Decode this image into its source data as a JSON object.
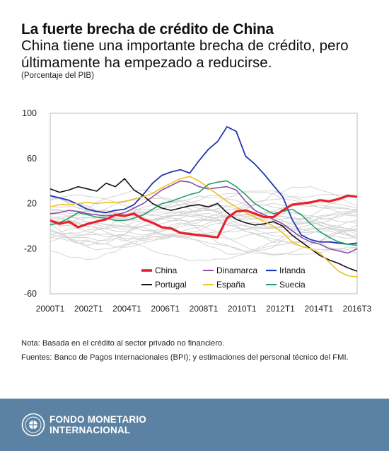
{
  "title": "La fuerte brecha de crédito de China",
  "subtitle": "China tiene una importante brecha de crédito, pero últimamente ha empezado a reducirse.",
  "unit_label": "(Porcentaje del PIB)",
  "notes": {
    "note": "Nota: Basada en el crédito al sector privado no financiero.",
    "sources": "Fuentes: Banco de Pagos Internacionales (BPI); y estimaciones del personal técnico del FMI."
  },
  "footer": {
    "org_line1": "FONDO MONETARIO",
    "org_line2": "INTERNACIONAL"
  },
  "chart_data": {
    "type": "line",
    "title": "",
    "xlabel": "",
    "ylabel": "",
    "x_tick_labels": [
      "2000T1",
      "2002T1",
      "2004T1",
      "2006T1",
      "2008T1",
      "2010T1",
      "2012T1",
      "2014T1",
      "2016T3"
    ],
    "x_range": [
      2000.0,
      2016.5
    ],
    "y_ticks": [
      100,
      60,
      20,
      -20,
      -60
    ],
    "y_tick_labels": [
      "100",
      "60",
      "20",
      "-20",
      "-60"
    ],
    "ylim": [
      -60,
      100
    ],
    "grid": false,
    "legend_position": "bottom-left",
    "background_series": {
      "color": "#d0d0d0",
      "note": "many unlabeled countries"
    },
    "series": [
      {
        "name": "China",
        "color": "#e8202a",
        "width": 3.2,
        "points": [
          [
            2000,
            5
          ],
          [
            2000.5,
            2
          ],
          [
            2001,
            4
          ],
          [
            2001.5,
            -1
          ],
          [
            2002,
            2
          ],
          [
            2002.5,
            4
          ],
          [
            2003,
            6
          ],
          [
            2003.5,
            10
          ],
          [
            2004,
            9
          ],
          [
            2004.5,
            11
          ],
          [
            2005,
            6
          ],
          [
            2005.5,
            3
          ],
          [
            2006,
            -1
          ],
          [
            2006.5,
            -2
          ],
          [
            2007,
            -6
          ],
          [
            2007.5,
            -7
          ],
          [
            2008,
            -8
          ],
          [
            2008.5,
            -9
          ],
          [
            2009,
            -10
          ],
          [
            2009.5,
            7
          ],
          [
            2010,
            13
          ],
          [
            2010.5,
            14
          ],
          [
            2011,
            11
          ],
          [
            2011.5,
            8
          ],
          [
            2012,
            8
          ],
          [
            2012.5,
            14
          ],
          [
            2013,
            19
          ],
          [
            2013.5,
            20
          ],
          [
            2014,
            21
          ],
          [
            2014.5,
            23
          ],
          [
            2015,
            22
          ],
          [
            2015.5,
            24
          ],
          [
            2016,
            27
          ],
          [
            2016.5,
            26
          ]
        ]
      },
      {
        "name": "Dinamarca",
        "color": "#8b4fa8",
        "width": 1.6,
        "points": [
          [
            2000,
            11
          ],
          [
            2000.5,
            12
          ],
          [
            2001,
            14
          ],
          [
            2001.5,
            13
          ],
          [
            2002,
            11
          ],
          [
            2002.5,
            10
          ],
          [
            2003,
            9
          ],
          [
            2003.5,
            10
          ],
          [
            2004,
            12
          ],
          [
            2004.5,
            16
          ],
          [
            2005,
            20
          ],
          [
            2005.5,
            26
          ],
          [
            2006,
            32
          ],
          [
            2006.5,
            36
          ],
          [
            2007,
            40
          ],
          [
            2007.5,
            39
          ],
          [
            2008,
            35
          ],
          [
            2008.5,
            33
          ],
          [
            2009,
            34
          ],
          [
            2009.5,
            35
          ],
          [
            2010,
            32
          ],
          [
            2010.5,
            22
          ],
          [
            2011,
            14
          ],
          [
            2011.5,
            10
          ],
          [
            2012,
            6
          ],
          [
            2012.5,
            2
          ],
          [
            2013,
            -4
          ],
          [
            2013.5,
            -10
          ],
          [
            2014,
            -14
          ],
          [
            2014.5,
            -16
          ],
          [
            2015,
            -20
          ],
          [
            2015.5,
            -22
          ],
          [
            2016,
            -24
          ],
          [
            2016.5,
            -20
          ]
        ]
      },
      {
        "name": "Irlanda",
        "color": "#1f35b0",
        "width": 1.8,
        "points": [
          [
            2000,
            27
          ],
          [
            2000.5,
            25
          ],
          [
            2001,
            23
          ],
          [
            2001.5,
            19
          ],
          [
            2002,
            15
          ],
          [
            2002.5,
            13
          ],
          [
            2003,
            12
          ],
          [
            2003.5,
            14
          ],
          [
            2004,
            15
          ],
          [
            2004.5,
            19
          ],
          [
            2005,
            28
          ],
          [
            2005.5,
            38
          ],
          [
            2006,
            45
          ],
          [
            2006.5,
            48
          ],
          [
            2007,
            50
          ],
          [
            2007.5,
            47
          ],
          [
            2008,
            58
          ],
          [
            2008.5,
            68
          ],
          [
            2009,
            75
          ],
          [
            2009.5,
            88
          ],
          [
            2010,
            84
          ],
          [
            2010.5,
            62
          ],
          [
            2011,
            55
          ],
          [
            2011.5,
            46
          ],
          [
            2012,
            36
          ],
          [
            2012.5,
            26
          ],
          [
            2013,
            6
          ],
          [
            2013.5,
            -8
          ],
          [
            2014,
            -12
          ],
          [
            2014.5,
            -14
          ],
          [
            2015,
            -14
          ],
          [
            2015.5,
            -15
          ],
          [
            2016,
            -16
          ],
          [
            2016.5,
            -15
          ]
        ]
      },
      {
        "name": "Portugal",
        "color": "#111111",
        "width": 1.6,
        "points": [
          [
            2000,
            33
          ],
          [
            2000.5,
            30
          ],
          [
            2001,
            32
          ],
          [
            2001.5,
            35
          ],
          [
            2002,
            33
          ],
          [
            2002.5,
            31
          ],
          [
            2003,
            38
          ],
          [
            2003.5,
            35
          ],
          [
            2004,
            42
          ],
          [
            2004.5,
            32
          ],
          [
            2005,
            27
          ],
          [
            2005.5,
            20
          ],
          [
            2006,
            16
          ],
          [
            2006.5,
            14
          ],
          [
            2007,
            16
          ],
          [
            2007.5,
            18
          ],
          [
            2008,
            19
          ],
          [
            2008.5,
            17
          ],
          [
            2009,
            20
          ],
          [
            2009.5,
            12
          ],
          [
            2010,
            6
          ],
          [
            2010.5,
            3
          ],
          [
            2011,
            1
          ],
          [
            2011.5,
            2
          ],
          [
            2012,
            4
          ],
          [
            2012.5,
            0
          ],
          [
            2013,
            -8
          ],
          [
            2013.5,
            -14
          ],
          [
            2014,
            -20
          ],
          [
            2014.5,
            -26
          ],
          [
            2015,
            -30
          ],
          [
            2015.5,
            -33
          ],
          [
            2016,
            -37
          ],
          [
            2016.5,
            -40
          ]
        ]
      },
      {
        "name": "España",
        "color": "#f0c020",
        "width": 1.6,
        "points": [
          [
            2000,
            17
          ],
          [
            2000.5,
            19
          ],
          [
            2001,
            19
          ],
          [
            2001.5,
            20
          ],
          [
            2002,
            21
          ],
          [
            2002.5,
            20
          ],
          [
            2003,
            21
          ],
          [
            2003.5,
            21
          ],
          [
            2004,
            22
          ],
          [
            2004.5,
            24
          ],
          [
            2005,
            26
          ],
          [
            2005.5,
            29
          ],
          [
            2006,
            34
          ],
          [
            2006.5,
            38
          ],
          [
            2007,
            42
          ],
          [
            2007.5,
            44
          ],
          [
            2008,
            40
          ],
          [
            2008.5,
            34
          ],
          [
            2009,
            28
          ],
          [
            2009.5,
            22
          ],
          [
            2010,
            17
          ],
          [
            2010.5,
            12
          ],
          [
            2011,
            8
          ],
          [
            2011.5,
            4
          ],
          [
            2012,
            0
          ],
          [
            2012.5,
            -6
          ],
          [
            2013,
            -14
          ],
          [
            2013.5,
            -18
          ],
          [
            2014,
            -20
          ],
          [
            2014.5,
            -24
          ],
          [
            2015,
            -32
          ],
          [
            2015.5,
            -40
          ],
          [
            2016,
            -44
          ],
          [
            2016.5,
            -45
          ]
        ]
      },
      {
        "name": "Suecia",
        "color": "#22a066",
        "width": 1.6,
        "points": [
          [
            2000,
            1
          ],
          [
            2000.5,
            3
          ],
          [
            2001,
            7
          ],
          [
            2001.5,
            12
          ],
          [
            2002,
            10
          ],
          [
            2002.5,
            8
          ],
          [
            2003,
            7
          ],
          [
            2003.5,
            5
          ],
          [
            2004,
            5
          ],
          [
            2004.5,
            7
          ],
          [
            2005,
            10
          ],
          [
            2005.5,
            15
          ],
          [
            2006,
            20
          ],
          [
            2006.5,
            22
          ],
          [
            2007,
            25
          ],
          [
            2007.5,
            28
          ],
          [
            2008,
            30
          ],
          [
            2008.5,
            37
          ],
          [
            2009,
            39
          ],
          [
            2009.5,
            40
          ],
          [
            2010,
            35
          ],
          [
            2010.5,
            28
          ],
          [
            2011,
            20
          ],
          [
            2011.5,
            15
          ],
          [
            2012,
            11
          ],
          [
            2012.5,
            13
          ],
          [
            2013,
            15
          ],
          [
            2013.5,
            10
          ],
          [
            2014,
            2
          ],
          [
            2014.5,
            -5
          ],
          [
            2015,
            -10
          ],
          [
            2015.5,
            -14
          ],
          [
            2016,
            -16
          ],
          [
            2016.5,
            -17
          ]
        ]
      }
    ]
  }
}
